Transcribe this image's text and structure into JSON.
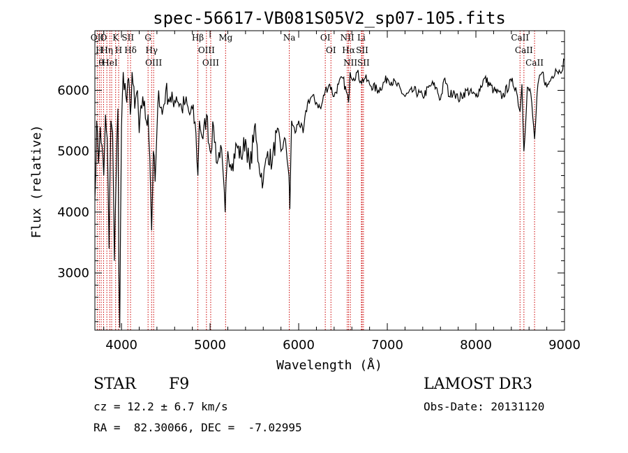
{
  "chart_data": {
    "type": "line",
    "title": "spec-56617-VB081S05V2_sp07-105.fits",
    "xlabel": "Wavelength (Å)",
    "ylabel": "Flux (relative)",
    "xlim": [
      3700,
      9000
    ],
    "ylim": [
      2060,
      6980
    ],
    "x_ticks": [
      4000,
      5000,
      6000,
      7000,
      8000,
      9000
    ],
    "y_ticks": [
      3000,
      4000,
      5000,
      6000
    ],
    "grid": false,
    "line_color": "#000000",
    "marker_color": "#cc0000",
    "series": [
      {
        "x": [
          3700,
          3720,
          3740,
          3760,
          3780,
          3800,
          3820,
          3840,
          3860,
          3880,
          3900,
          3920,
          3940,
          3960,
          3970,
          3980,
          4000,
          4020,
          4060,
          4080,
          4100,
          4120,
          4150,
          4180,
          4200,
          4240,
          4280,
          4300,
          4320,
          4340,
          4360,
          4380,
          4420,
          4460,
          4500,
          4560,
          4620,
          4680,
          4720,
          4770,
          4800,
          4840,
          4862,
          4880,
          4920,
          4960,
          5000,
          5040,
          5080,
          5120,
          5170,
          5200,
          5250,
          5300,
          5350,
          5400,
          5450,
          5500,
          5550,
          5600,
          5650,
          5700,
          5750,
          5800,
          5850,
          5890,
          5900,
          5920,
          5960,
          6000,
          6050,
          6100,
          6150,
          6200,
          6250,
          6300,
          6350,
          6400,
          6450,
          6500,
          6563,
          6580,
          6620,
          6660,
          6700,
          6750,
          6800,
          6900,
          7000,
          7100,
          7200,
          7300,
          7400,
          7500,
          7550,
          7600,
          7650,
          7700,
          7750,
          7800,
          7900,
          8000,
          8100,
          8200,
          8300,
          8400,
          8450,
          8498,
          8520,
          8542,
          8580,
          8620,
          8662,
          8700,
          8750,
          8800,
          8850,
          8900,
          8950,
          9000
        ],
        "y": [
          4200,
          5500,
          4800,
          5400,
          5100,
          4600,
          5600,
          5200,
          3400,
          5500,
          5300,
          3200,
          4600,
          5700,
          3100,
          2100,
          5400,
          6300,
          5800,
          6200,
          5600,
          6300,
          5700,
          6000,
          5300,
          5900,
          5500,
          5600,
          4900,
          3700,
          5000,
          4500,
          6000,
          5600,
          6000,
          5800,
          5900,
          5700,
          5800,
          5600,
          5700,
          5300,
          4600,
          5500,
          5200,
          5600,
          5000,
          5400,
          4800,
          5100,
          4000,
          5000,
          4800,
          5100,
          4900,
          5200,
          4700,
          5400,
          4800,
          4500,
          5000,
          4800,
          5300,
          5000,
          5200,
          4600,
          4050,
          5500,
          5300,
          5500,
          5300,
          5800,
          5900,
          5800,
          5700,
          6000,
          6100,
          5900,
          6100,
          6200,
          5800,
          6300,
          6200,
          6300,
          6150,
          6200,
          6100,
          6000,
          6200,
          6100,
          5900,
          6000,
          5900,
          6100,
          6050,
          5850,
          6200,
          5900,
          6000,
          5850,
          6000,
          5900,
          6200,
          6000,
          5900,
          6150,
          6050,
          5650,
          6100,
          5000,
          6050,
          5950,
          5200,
          6100,
          6300,
          6050,
          6200,
          6350,
          6300,
          6500
        ]
      }
    ],
    "line_markers": [
      {
        "x": 3727,
        "label": "OII"
      },
      {
        "x": 3750,
        "label": "H"
      },
      {
        "x": 3771,
        "label": "θ"
      },
      {
        "x": 3798,
        "label": "O"
      },
      {
        "x": 3835,
        "label": "Hη"
      },
      {
        "x": 3869,
        "label": "HeI"
      },
      {
        "x": 3889,
        "label": ""
      },
      {
        "x": 3934,
        "label": "K"
      },
      {
        "x": 3968,
        "label": "H"
      },
      {
        "x": 4072,
        "label": "SII"
      },
      {
        "x": 4102,
        "label": "Hδ"
      },
      {
        "x": 4300,
        "label": "G"
      },
      {
        "x": 4340,
        "label": "Hγ"
      },
      {
        "x": 4363,
        "label": "OIII"
      },
      {
        "x": 4862,
        "label": "Hβ"
      },
      {
        "x": 4959,
        "label": "OIII"
      },
      {
        "x": 5007,
        "label": "OIII"
      },
      {
        "x": 5175,
        "label": "Mg"
      },
      {
        "x": 5894,
        "label": "Na"
      },
      {
        "x": 6300,
        "label": "OI"
      },
      {
        "x": 6364,
        "label": "OI"
      },
      {
        "x": 6548,
        "label": "NII"
      },
      {
        "x": 6563,
        "label": "Hα"
      },
      {
        "x": 6583,
        "label": "NII"
      },
      {
        "x": 6708,
        "label": "Li"
      },
      {
        "x": 6716,
        "label": "SII"
      },
      {
        "x": 6731,
        "label": "SII"
      },
      {
        "x": 8498,
        "label": "CaII"
      },
      {
        "x": 8542,
        "label": "CaII"
      },
      {
        "x": 8662,
        "label": "CaII"
      }
    ]
  },
  "info": {
    "object_class": "STAR",
    "subclass": "F9",
    "survey": "LAMOST DR3",
    "cz": "cz = 12.2 ± 6.7 km/s",
    "obs_date": "Obs-Date: 20131120",
    "coords": "RA =  82.30066, DEC =  -7.02995"
  }
}
